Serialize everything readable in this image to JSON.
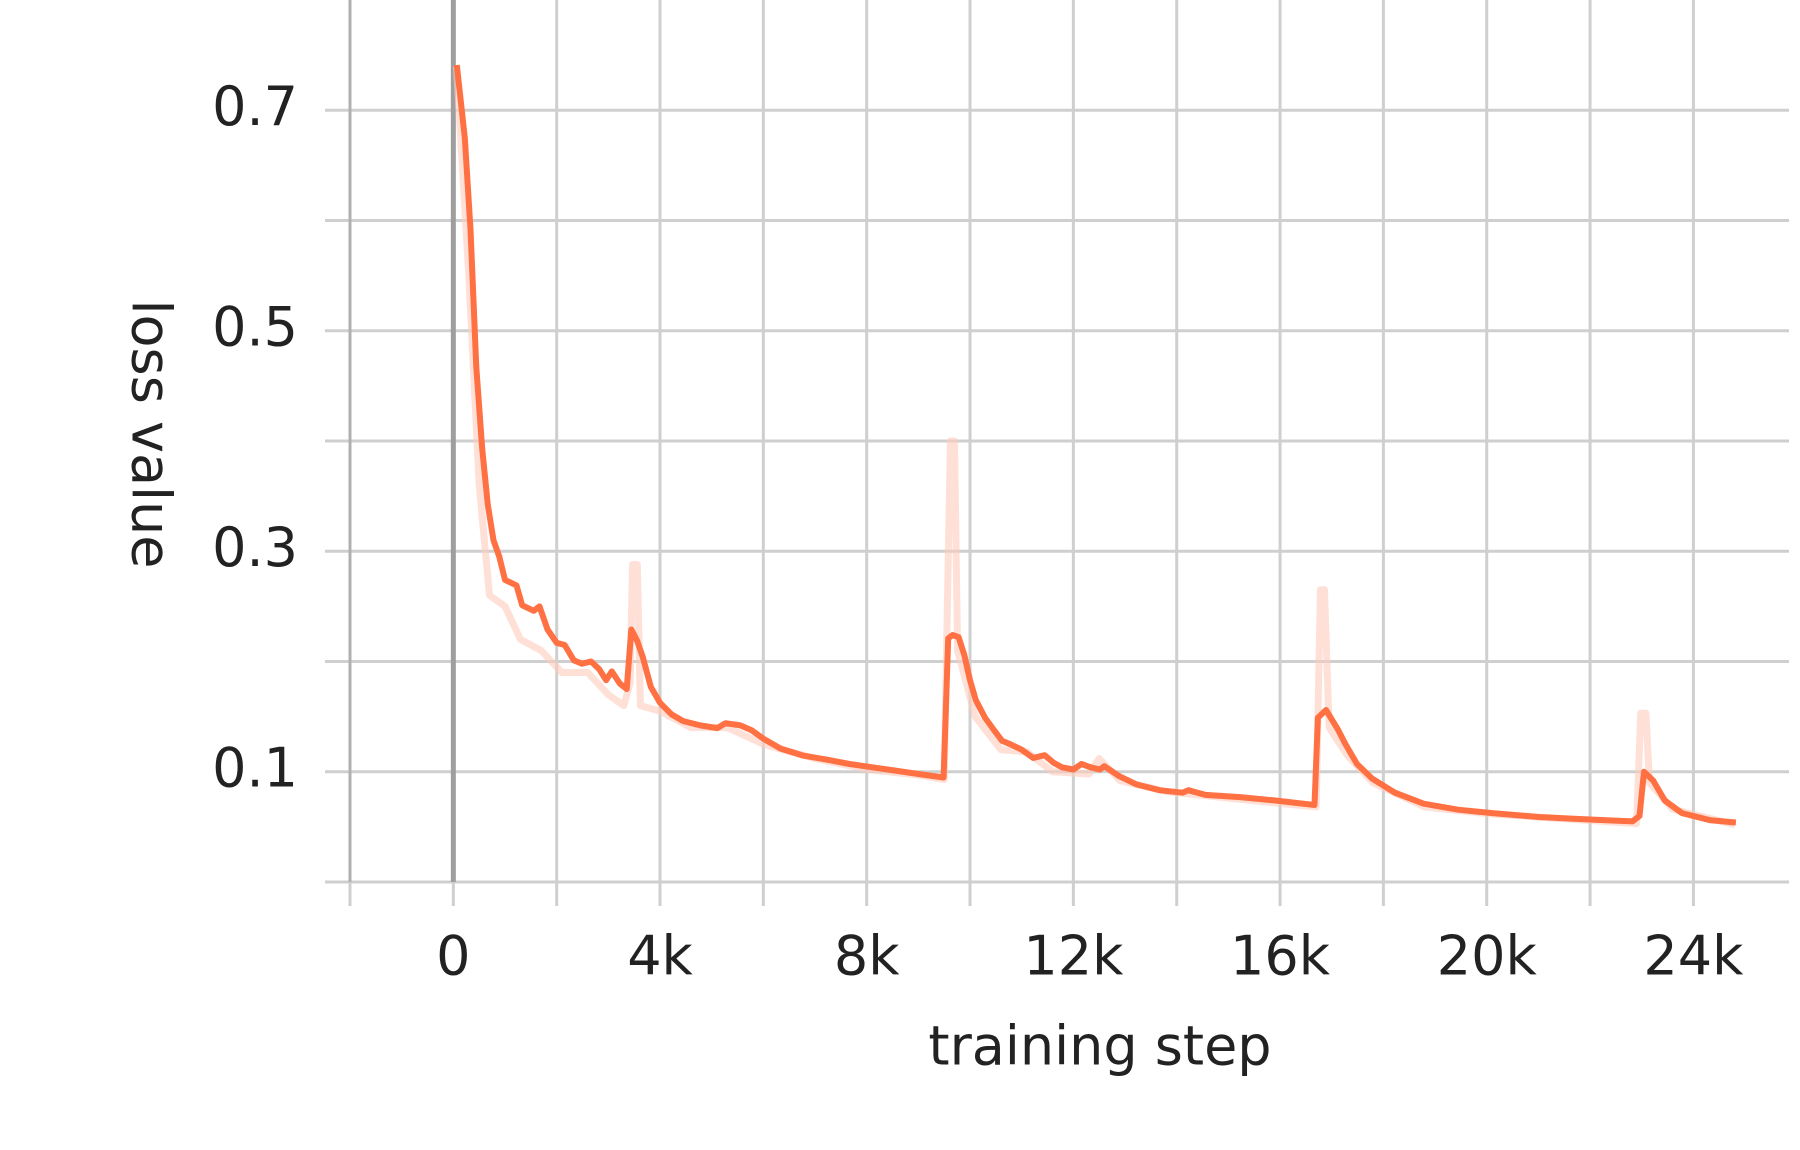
{
  "chart_data": {
    "type": "line",
    "xlabel": "training step",
    "ylabel": "loss value",
    "xlim": [
      -2000,
      25850
    ],
    "ylim": [
      0,
      0.8
    ],
    "xticks": [
      {
        "value": 0,
        "label": "0"
      },
      {
        "value": 4000,
        "label": "4k"
      },
      {
        "value": 8000,
        "label": "8k"
      },
      {
        "value": 12000,
        "label": "12k"
      },
      {
        "value": 16000,
        "label": "16k"
      },
      {
        "value": 20000,
        "label": "20k"
      },
      {
        "value": 24000,
        "label": "24k"
      }
    ],
    "xminorticks": [
      -2000,
      2000,
      6000,
      10000,
      14000,
      18000,
      22000
    ],
    "yticks": [
      0.1,
      0.3,
      0.5,
      0.7
    ],
    "yminorticks": [
      0,
      0.2,
      0.4,
      0.6
    ],
    "grid": true,
    "series": [
      {
        "color": "#ffccbc",
        "opacity": 0.6,
        "x": [
          60,
          300,
          500,
          700,
          1000,
          1300,
          1700,
          2100,
          2600,
          3000,
          3300,
          3420,
          3470,
          3560,
          3620,
          4000,
          4600,
          5300,
          6000,
          7000,
          8000,
          9000,
          9500,
          9620,
          9700,
          9760,
          10100,
          10600,
          11100,
          11600,
          12300,
          12500,
          12900,
          13800,
          15000,
          16700,
          16780,
          16860,
          16950,
          17300,
          17800,
          18800,
          20000,
          22900,
          22980,
          23080,
          23150,
          23600,
          24800
        ],
        "values": [
          0.74,
          0.55,
          0.36,
          0.26,
          0.25,
          0.22,
          0.21,
          0.19,
          0.19,
          0.17,
          0.16,
          0.18,
          0.288,
          0.288,
          0.16,
          0.155,
          0.14,
          0.14,
          0.125,
          0.112,
          0.102,
          0.097,
          0.093,
          0.4,
          0.4,
          0.21,
          0.15,
          0.12,
          0.118,
          0.1,
          0.098,
          0.112,
          0.092,
          0.082,
          0.076,
          0.068,
          0.265,
          0.265,
          0.14,
          0.115,
          0.09,
          0.068,
          0.062,
          0.053,
          0.153,
          0.153,
          0.09,
          0.066,
          0.052
        ]
      },
      {
        "color": "#ff7043",
        "opacity": 1,
        "x": [
          67,
          222,
          333,
          444,
          556,
          667,
          778,
          889,
          1000,
          1222,
          1333,
          1556,
          1667,
          1822,
          2000,
          2156,
          2333,
          2489,
          2667,
          2822,
          2956,
          3067,
          3222,
          3356,
          3444,
          3556,
          3667,
          3822,
          4000,
          4222,
          4444,
          4778,
          5111,
          5267,
          5556,
          5778,
          6000,
          6333,
          6778,
          7222,
          7667,
          8111,
          8556,
          9000,
          9489,
          9578,
          9667,
          9778,
          9889,
          10000,
          10111,
          10289,
          10444,
          10622,
          10778,
          11000,
          11222,
          11444,
          11622,
          11778,
          12000,
          12156,
          12333,
          12511,
          12600,
          12889,
          13222,
          13667,
          14111,
          14222,
          14556,
          15222,
          15889,
          16667,
          16733,
          16889,
          17111,
          17267,
          17489,
          17778,
          18222,
          18778,
          19444,
          20111,
          21000,
          21889,
          22822,
          22956,
          23044,
          23222,
          23444,
          23778,
          24333,
          24822
        ],
        "values": [
          0.741,
          0.675,
          0.592,
          0.467,
          0.394,
          0.342,
          0.31,
          0.295,
          0.274,
          0.269,
          0.251,
          0.246,
          0.25,
          0.229,
          0.217,
          0.215,
          0.201,
          0.198,
          0.2,
          0.193,
          0.183,
          0.191,
          0.18,
          0.175,
          0.229,
          0.219,
          0.204,
          0.177,
          0.1625,
          0.152,
          0.146,
          0.142,
          0.1396,
          0.144,
          0.142,
          0.1375,
          0.13,
          0.121,
          0.1146,
          0.111,
          0.107,
          0.104,
          0.101,
          0.098,
          0.0948,
          0.221,
          0.224,
          0.222,
          0.206,
          0.183,
          0.165,
          0.149,
          0.139,
          0.128,
          0.125,
          0.12,
          0.1125,
          0.115,
          0.108,
          0.104,
          0.102,
          0.107,
          0.104,
          0.102,
          0.105,
          0.096,
          0.0885,
          0.0833,
          0.081,
          0.0833,
          0.079,
          0.077,
          0.074,
          0.0698,
          0.149,
          0.156,
          0.139,
          0.125,
          0.107,
          0.094,
          0.081,
          0.071,
          0.0656,
          0.0625,
          0.059,
          0.057,
          0.055,
          0.06,
          0.1,
          0.092,
          0.074,
          0.0625,
          0.056,
          0.054
        ]
      }
    ]
  }
}
